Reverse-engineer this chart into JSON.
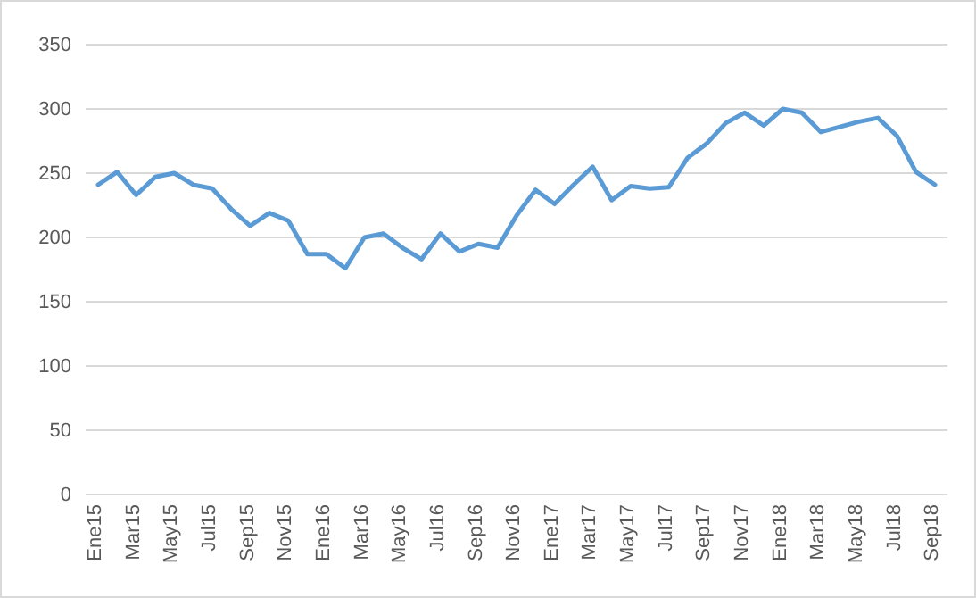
{
  "chart_data": {
    "type": "line",
    "categories": [
      "Ene15",
      null,
      "Mar15",
      null,
      "May15",
      null,
      "Jul15",
      null,
      "Sep15",
      null,
      "Nov15",
      null,
      "Ene16",
      null,
      "Mar16",
      null,
      "May16",
      null,
      "Jul16",
      null,
      "Sep16",
      null,
      "Nov16",
      null,
      "Ene17",
      null,
      "Mar17",
      null,
      "May17",
      null,
      "Jul17",
      null,
      "Sep17",
      null,
      "Nov17",
      null,
      "Ene18",
      null,
      "Mar18",
      null,
      "May18",
      null,
      "Jul18",
      null,
      "Sep18"
    ],
    "series": [
      {
        "color": "#5b9bd5",
        "values": [
          241,
          251,
          233,
          247,
          250,
          241,
          238,
          222,
          209,
          219,
          213,
          187,
          187,
          176,
          200,
          203,
          192,
          183,
          203,
          189,
          195,
          192,
          217,
          237,
          226,
          241,
          255,
          229,
          240,
          238,
          239,
          262,
          273,
          289,
          297,
          287,
          300,
          297,
          282,
          286,
          290,
          293,
          279,
          251,
          241
        ]
      }
    ],
    "ylim": [
      0,
      350
    ],
    "yticks": [
      0,
      50,
      100,
      150,
      200,
      250,
      300,
      350
    ],
    "grid": "y",
    "marker": "none",
    "line_style": "solid"
  }
}
